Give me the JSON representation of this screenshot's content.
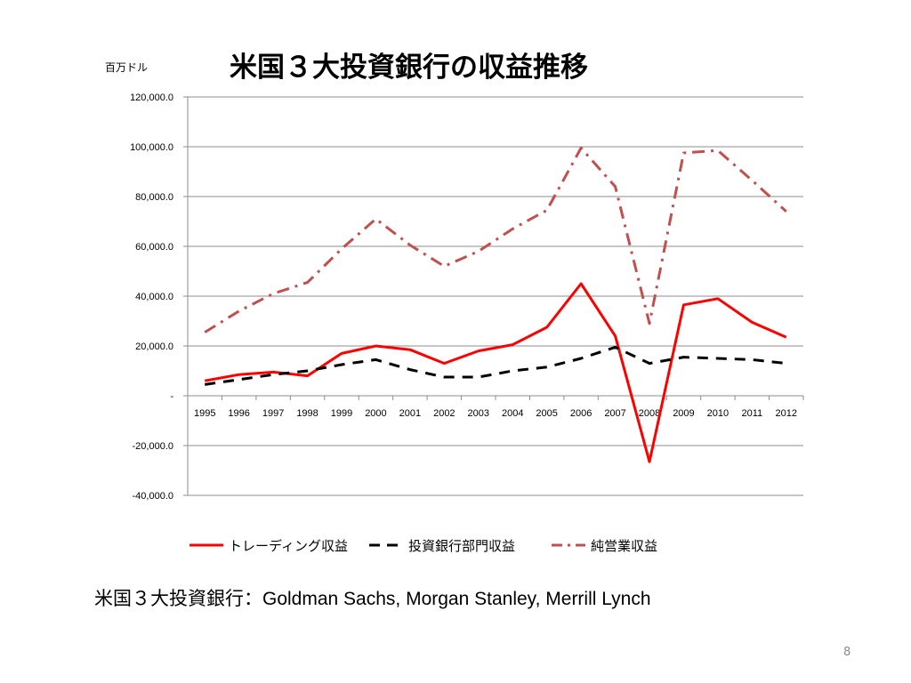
{
  "slide": {
    "title": "米国３大投資銀行の収益推移",
    "unit_label": "百万ドル",
    "caption_jp": "米国３大投資銀行：",
    "caption_banks": "Goldman Sachs, Morgan Stanley, Merrill Lynch",
    "page_number": "8"
  },
  "chart_data": {
    "type": "line",
    "title": "米国３大投資銀行の収益推移",
    "ylabel": "百万ドル",
    "xlabel": "",
    "categories": [
      "1995",
      "1996",
      "1997",
      "1998",
      "1999",
      "2000",
      "2001",
      "2002",
      "2003",
      "2004",
      "2005",
      "2006",
      "2007",
      "2008",
      "2009",
      "2010",
      "2011",
      "2012"
    ],
    "ylim": [
      -40000,
      120000
    ],
    "yticks": [
      -40000,
      -20000,
      0,
      20000,
      40000,
      60000,
      80000,
      100000,
      120000
    ],
    "ytick_labels": [
      "-40,000.0",
      "-20,000.0",
      "-",
      "20,000.0",
      "40,000.0",
      "60,000.0",
      "80,000.0",
      "100,000.0",
      "120,000.0"
    ],
    "grid": true,
    "legend_position": "bottom",
    "series": [
      {
        "name": "トレーディング収益",
        "color": "#ff0000",
        "style": "solid",
        "values": [
          6000,
          8500,
          9500,
          8000,
          17000,
          20000,
          18500,
          13000,
          18000,
          20500,
          27500,
          45000,
          24000,
          -26500,
          36500,
          39000,
          29500,
          23500
        ]
      },
      {
        "name": "投資銀行部門収益",
        "color": "#000000",
        "style": "dashed",
        "values": [
          4500,
          6500,
          8500,
          10000,
          12500,
          14500,
          10500,
          7500,
          7500,
          10000,
          11500,
          15000,
          19500,
          13000,
          15500,
          15000,
          14500,
          13000
        ]
      },
      {
        "name": "純営業収益",
        "color": "#c0504d",
        "style": "dashdot",
        "values": [
          25500,
          34000,
          41000,
          45500,
          59000,
          71000,
          60500,
          52000,
          58000,
          67000,
          74500,
          99500,
          84000,
          29000,
          97500,
          98500,
          86500,
          74000
        ]
      }
    ]
  }
}
